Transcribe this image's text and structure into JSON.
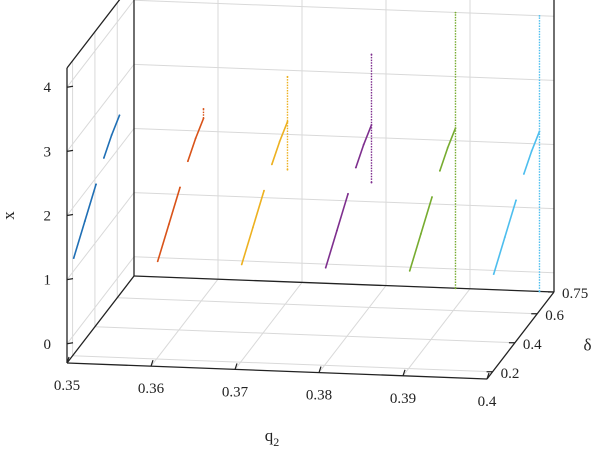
{
  "chart_data": {
    "type": "scatter",
    "projection": "3d",
    "title": "",
    "xlabel": "q2",
    "xlabel_base": "q",
    "xlabel_sub": "2",
    "ylabel": "δ",
    "zlabel": "x",
    "xlim": [
      0.35,
      0.4
    ],
    "ylim": [
      0.15,
      0.75
    ],
    "zlim": [
      -0.3,
      4.3
    ],
    "xticks": [
      "0.35",
      "0.36",
      "0.37",
      "0.38",
      "0.39",
      "0.4"
    ],
    "yticks": [
      "0.2",
      "0.4",
      "0.6",
      "0.75"
    ],
    "zticks": [
      "0",
      "1",
      "2",
      "3",
      "4"
    ],
    "grid": true,
    "legend": "none",
    "series": [
      {
        "q2": 0.35,
        "color": "#1f6fb5",
        "points": [
          [
            0.21,
            1.2
          ],
          [
            0.31,
            1.55
          ],
          [
            0.41,
            1.9
          ],
          [
            0.48,
            2.15
          ],
          [
            0.55,
            2.35
          ],
          [
            0.62,
            2.5
          ]
        ]
      },
      {
        "q2": 0.36,
        "color": "#d95319",
        "points": [
          [
            0.21,
            1.2
          ],
          [
            0.31,
            1.55
          ],
          [
            0.41,
            1.9
          ],
          [
            0.48,
            2.15
          ],
          [
            0.55,
            2.35
          ],
          [
            0.62,
            2.5
          ],
          [
            0.62,
            2.65
          ]
        ]
      },
      {
        "q2": 0.37,
        "color": "#edb120",
        "points": [
          [
            0.21,
            1.2
          ],
          [
            0.31,
            1.55
          ],
          [
            0.41,
            1.9
          ],
          [
            0.48,
            2.15
          ],
          [
            0.55,
            2.35
          ],
          [
            0.62,
            2.5
          ],
          [
            0.62,
            1.75
          ],
          [
            0.62,
            3.2
          ]
        ]
      },
      {
        "q2": 0.38,
        "color": "#7e2f8e",
        "points": [
          [
            0.21,
            1.2
          ],
          [
            0.31,
            1.55
          ],
          [
            0.41,
            1.9
          ],
          [
            0.48,
            2.15
          ],
          [
            0.55,
            2.35
          ],
          [
            0.62,
            2.5
          ],
          [
            0.62,
            1.6
          ],
          [
            0.62,
            3.6
          ]
        ]
      },
      {
        "q2": 0.39,
        "color": "#77ac30",
        "points": [
          [
            0.21,
            1.2
          ],
          [
            0.31,
            1.55
          ],
          [
            0.41,
            1.9
          ],
          [
            0.48,
            2.15
          ],
          [
            0.55,
            2.35
          ],
          [
            0.62,
            2.5
          ],
          [
            0.62,
            0.0
          ],
          [
            0.62,
            4.3
          ]
        ]
      },
      {
        "q2": 0.4,
        "color": "#4dbeee",
        "points": [
          [
            0.21,
            1.2
          ],
          [
            0.31,
            1.55
          ],
          [
            0.41,
            1.9
          ],
          [
            0.48,
            2.15
          ],
          [
            0.55,
            2.35
          ],
          [
            0.62,
            2.5
          ],
          [
            0.62,
            0.0
          ],
          [
            0.62,
            4.3
          ]
        ]
      }
    ]
  }
}
